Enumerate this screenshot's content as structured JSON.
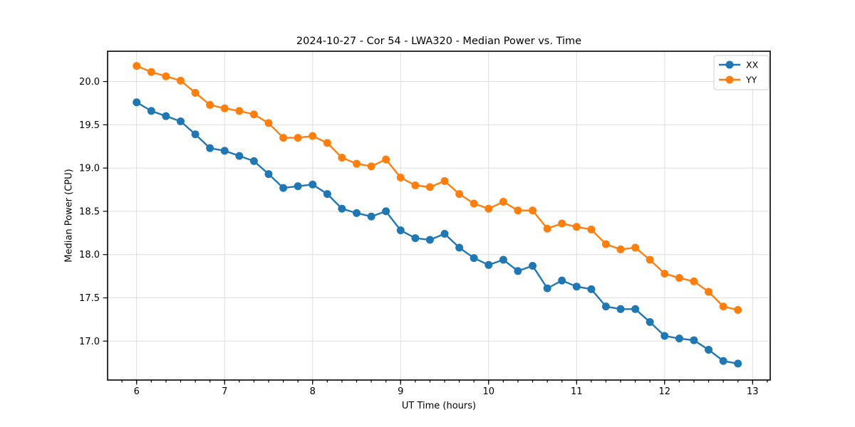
{
  "chart_data": {
    "type": "line",
    "title": "2024-10-27 - Cor 54 - LWA320 - Median Power vs. Time",
    "xlabel": "UT Time (hours)",
    "ylabel": "Median Power (CPU)",
    "x": [
      6.0,
      6.167,
      6.333,
      6.5,
      6.667,
      6.833,
      7.0,
      7.167,
      7.333,
      7.5,
      7.667,
      7.833,
      8.0,
      8.167,
      8.333,
      8.5,
      8.667,
      8.833,
      9.0,
      9.167,
      9.333,
      9.5,
      9.667,
      9.833,
      10.0,
      10.167,
      10.333,
      10.5,
      10.667,
      10.833,
      11.0,
      11.167,
      11.333,
      11.5,
      11.667,
      11.833,
      12.0,
      12.167,
      12.333,
      12.5,
      12.667,
      12.833
    ],
    "series": [
      {
        "name": "XX",
        "color": "#1f77b4",
        "values": [
          19.76,
          19.66,
          19.6,
          19.54,
          19.39,
          19.23,
          19.2,
          19.14,
          19.08,
          18.93,
          18.77,
          18.79,
          18.81,
          18.7,
          18.53,
          18.48,
          18.44,
          18.5,
          18.28,
          18.19,
          18.17,
          18.24,
          18.08,
          17.96,
          17.88,
          17.94,
          17.81,
          17.87,
          17.61,
          17.7,
          17.63,
          17.6,
          17.4,
          17.37,
          17.37,
          17.22,
          17.06,
          17.03,
          17.01,
          16.9,
          16.77,
          16.74
        ]
      },
      {
        "name": "YY",
        "color": "#ff7f0e",
        "values": [
          20.18,
          20.11,
          20.06,
          20.01,
          19.87,
          19.73,
          19.69,
          19.66,
          19.62,
          19.52,
          19.35,
          19.35,
          19.37,
          19.29,
          19.12,
          19.05,
          19.02,
          19.1,
          18.89,
          18.8,
          18.78,
          18.85,
          18.7,
          18.59,
          18.53,
          18.61,
          18.51,
          18.51,
          18.3,
          18.36,
          18.32,
          18.29,
          18.12,
          18.06,
          18.08,
          17.94,
          17.78,
          17.73,
          17.69,
          17.57,
          17.4,
          17.36
        ]
      }
    ],
    "xlim": [
      5.67,
      13.2
    ],
    "ylim": [
      16.55,
      20.35
    ],
    "xticks": [
      6,
      7,
      8,
      9,
      10,
      11,
      12,
      13
    ],
    "xtick_labels": [
      "6",
      "7",
      "8",
      "9",
      "10",
      "11",
      "12",
      "13"
    ],
    "yticks": [
      17.0,
      17.5,
      18.0,
      18.5,
      19.0,
      19.5,
      20.0
    ],
    "ytick_labels": [
      "17.0",
      "17.5",
      "18.0",
      "18.5",
      "19.0",
      "19.5",
      "20.0"
    ],
    "x_minor_step": 0.166667,
    "grid": true,
    "legend": {
      "position": "upper right",
      "labels": [
        "XX",
        "YY"
      ]
    },
    "colors": {
      "grid": "#dedede",
      "axis": "#000000",
      "background": "#ffffff",
      "legend_border": "#cccccc"
    }
  }
}
